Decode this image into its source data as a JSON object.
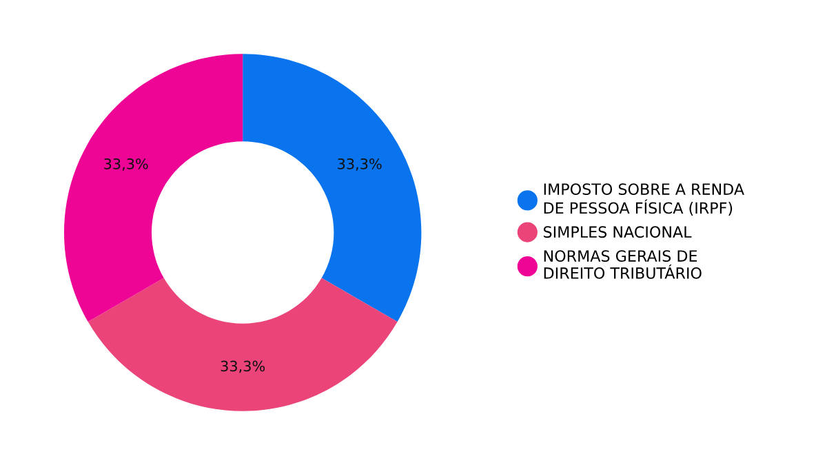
{
  "chart_data": {
    "type": "donut",
    "categories": [
      "IMPOSTO SOBRE A RENDA\nDE PESSOA FÍSICA (IRPF)",
      "SIMPLES NACIONAL",
      "NORMAS GERAIS DE\nDIREITO TRIBUTÁRIO"
    ],
    "values": [
      33.3,
      33.3,
      33.3
    ],
    "value_labels": [
      "33,3%",
      "33,3%",
      "33,3%"
    ],
    "colors": [
      "#0a73ee",
      "#ea4479",
      "#ee0596"
    ],
    "legend": "right"
  }
}
